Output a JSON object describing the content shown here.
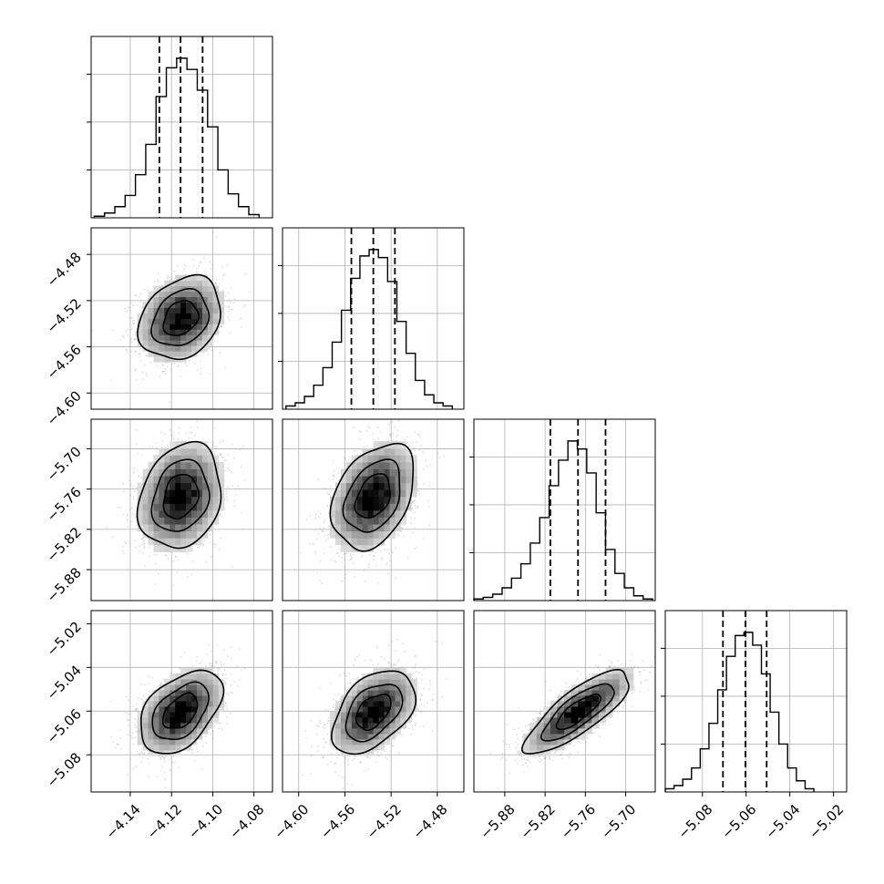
{
  "chart_data": {
    "type": "corner",
    "grid": true,
    "parameters": [
      {
        "range": [
          -4.159,
          -4.071
        ],
        "ticks": [
          "−4.14",
          "−4.12",
          "−4.10",
          "−4.08"
        ],
        "tick_values": [
          -4.14,
          -4.12,
          -4.1,
          -4.08
        ],
        "quantiles": [
          -4.1259,
          -4.1156,
          -4.1049
        ],
        "hist_x": [
          -4.155,
          -4.15,
          -4.145,
          -4.14,
          -4.135,
          -4.13,
          -4.125,
          -4.12,
          -4.115,
          -4.11,
          -4.105,
          -4.1,
          -4.095,
          -4.09,
          -4.085,
          -4.08
        ],
        "hist_y": [
          0.01,
          0.03,
          0.07,
          0.14,
          0.27,
          0.46,
          0.76,
          0.94,
          1.0,
          0.93,
          0.8,
          0.57,
          0.3,
          0.15,
          0.07,
          0.02
        ]
      },
      {
        "range": [
          -4.614,
          -4.457
        ],
        "ticks": [
          "−4.60",
          "−4.56",
          "−4.52",
          "−4.48"
        ],
        "tick_values": [
          -4.6,
          -4.56,
          -4.52,
          -4.48
        ],
        "quantiles": [
          -4.5544,
          -4.5354,
          -4.5167
        ],
        "hist_x": [
          -4.607,
          -4.599,
          -4.591,
          -4.583,
          -4.575,
          -4.567,
          -4.559,
          -4.551,
          -4.543,
          -4.535,
          -4.527,
          -4.519,
          -4.511,
          -4.503,
          -4.495,
          -4.487,
          -4.479,
          -4.471
        ],
        "hist_y": [
          0.02,
          0.04,
          0.08,
          0.15,
          0.26,
          0.42,
          0.62,
          0.82,
          0.96,
          1.0,
          0.95,
          0.8,
          0.55,
          0.35,
          0.18,
          0.09,
          0.04,
          0.02
        ]
      },
      {
        "range": [
          -5.926,
          -5.656
        ],
        "ticks": [
          "−5.88",
          "−5.82",
          "−5.76",
          "−5.70"
        ],
        "tick_values": [
          -5.88,
          -5.82,
          -5.76,
          -5.7
        ],
        "quantiles": [
          -5.8122,
          -5.771,
          -5.73
        ],
        "hist_x": [
          -5.919,
          -5.905,
          -5.891,
          -5.877,
          -5.863,
          -5.849,
          -5.835,
          -5.821,
          -5.807,
          -5.793,
          -5.779,
          -5.765,
          -5.751,
          -5.737,
          -5.723,
          -5.709,
          -5.695,
          -5.681,
          -5.667
        ],
        "hist_y": [
          0.01,
          0.02,
          0.04,
          0.08,
          0.14,
          0.23,
          0.36,
          0.52,
          0.72,
          0.88,
          1.0,
          0.95,
          0.8,
          0.55,
          0.32,
          0.17,
          0.08,
          0.03,
          0.01
        ]
      },
      {
        "range": [
          -5.097,
          -5.014
        ],
        "ticks": [
          "−5.08",
          "−5.06",
          "−5.04",
          "−5.02"
        ],
        "tick_values": [
          -5.08,
          -5.06,
          -5.04,
          -5.02
        ],
        "quantiles": [
          -5.0706,
          -5.0603,
          -5.0506
        ],
        "hist_x": [
          -5.095,
          -5.091,
          -5.087,
          -5.083,
          -5.079,
          -5.075,
          -5.071,
          -5.067,
          -5.063,
          -5.059,
          -5.055,
          -5.051,
          -5.047,
          -5.043,
          -5.039,
          -5.035,
          -5.031
        ],
        "hist_y": [
          0.02,
          0.04,
          0.08,
          0.15,
          0.27,
          0.43,
          0.64,
          0.85,
          0.98,
          1.0,
          0.92,
          0.74,
          0.5,
          0.3,
          0.15,
          0.07,
          0.02
        ]
      }
    ],
    "pairs": [
      {
        "row": 1,
        "col": 0,
        "mean": [
          -4.1156,
          -4.5354
        ],
        "sd": [
          0.0105,
          0.0188
        ],
        "corr": 0.25
      },
      {
        "row": 2,
        "col": 0,
        "mean": [
          -4.1156,
          -5.771
        ],
        "sd": [
          0.0105,
          0.0411
        ],
        "corr": 0.2
      },
      {
        "row": 2,
        "col": 1,
        "mean": [
          -4.5354,
          -5.771
        ],
        "sd": [
          0.0188,
          0.0411
        ],
        "corr": 0.35
      },
      {
        "row": 3,
        "col": 0,
        "mean": [
          -4.1156,
          -5.0603
        ],
        "sd": [
          0.0105,
          0.01
        ],
        "corr": 0.45
      },
      {
        "row": 3,
        "col": 1,
        "mean": [
          -4.5354,
          -5.0603
        ],
        "sd": [
          0.0188,
          0.01
        ],
        "corr": 0.45
      },
      {
        "row": 3,
        "col": 2,
        "mean": [
          -5.771,
          -5.0603
        ],
        "sd": [
          0.0411,
          0.01
        ],
        "corr": 0.8
      }
    ]
  }
}
